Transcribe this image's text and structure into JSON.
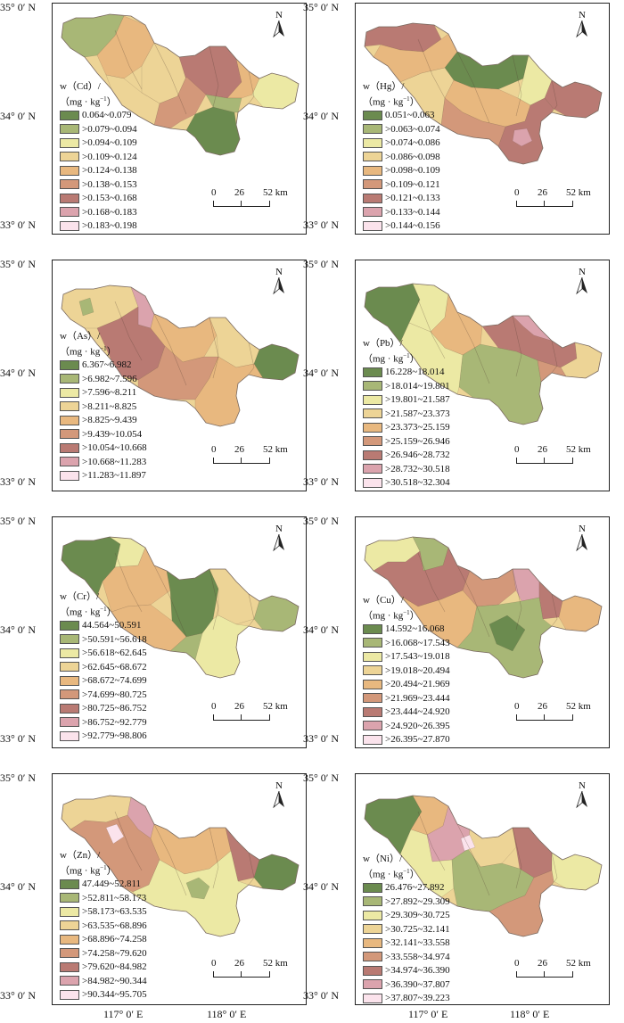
{
  "lat_labels": {
    "n35": "35° 0′ N",
    "n34": "34° 0′ N",
    "n33": "33° 0′ N"
  },
  "lon_labels": {
    "e117": "117° 0′ E",
    "e118": "118° 0′ E"
  },
  "north_label": "N",
  "scale_bar": {
    "t0": "0",
    "t26": "26",
    "t52": "52 km"
  },
  "legend_unit": "（mg · kg",
  "panels": [
    {
      "element": "Cd",
      "title": "w（Cd）/",
      "classes": [
        "0.064~0.079",
        ">0.079~0.094",
        ">0.094~0.109",
        ">0.109~0.124",
        ">0.124~0.138",
        ">0.138~0.153",
        ">0.153~0.168",
        ">0.168~0.183",
        ">0.183~0.198"
      ]
    },
    {
      "element": "Hg",
      "title": "w（Hg）/",
      "classes": [
        "0.051~0.063",
        ">0.063~0.074",
        ">0.074~0.086",
        ">0.086~0.098",
        ">0.098~0.109",
        ">0.109~0.121",
        ">0.121~0.133",
        ">0.133~0.144",
        ">0.144~0.156"
      ]
    },
    {
      "element": "As",
      "title": "w（As）/",
      "classes": [
        "6.367~6.982",
        ">6.982~7.596",
        ">7.596~8.211",
        ">8.211~8.825",
        ">8.825~9.439",
        ">9.439~10.054",
        ">10.054~10.668",
        ">10.668~11.283",
        ">11.283~11.897"
      ]
    },
    {
      "element": "Pb",
      "title": "w（Pb）/",
      "classes": [
        "16.228~18.014",
        ">18.014~19.801",
        ">19.801~21.587",
        ">21.587~23.373",
        ">23.373~25.159",
        ">25.159~26.946",
        ">26.946~28.732",
        ">28.732~30.518",
        ">30.518~32.304"
      ]
    },
    {
      "element": "Cr",
      "title": "w（Cr）/",
      "classes": [
        "44.564~50.591",
        ">50.591~56.618",
        ">56.618~62.645",
        ">62.645~68.672",
        ">68.672~74.699",
        ">74.699~80.725",
        ">80.725~86.752",
        ">86.752~92.779",
        ">92.779~98.806"
      ]
    },
    {
      "element": "Cu",
      "title": "w（Cu）/",
      "classes": [
        "14.592~16.068",
        ">16.068~17.543",
        ">17.543~19.018",
        ">19.018~20.494",
        ">20.494~21.969",
        ">21.969~23.444",
        ">23.444~24.920",
        ">24.920~26.395",
        ">26.395~27.870"
      ]
    },
    {
      "element": "Zn",
      "title": "w（Zn）/",
      "classes": [
        "47.449~52.811",
        ">52.811~58.173",
        ">58.173~63.535",
        ">63.535~68.896",
        ">68.896~74.258",
        ">74.258~79.620",
        ">79.620~84.982",
        ">84.982~90.344",
        ">90.344~95.705"
      ]
    },
    {
      "element": "Ni",
      "title": "w（Ni）/",
      "classes": [
        "26.476~27.892",
        ">27.892~29.309",
        ">29.309~30.725",
        ">30.725~32.141",
        ">32.141~33.558",
        ">33.558~34.974",
        ">34.974~36.390",
        ">36.390~37.807",
        ">37.807~39.223"
      ]
    }
  ],
  "class_colors": [
    "#6b8b4f",
    "#a8b776",
    "#ece9a4",
    "#edd496",
    "#e8b87f",
    "#d3987a",
    "#b97a73",
    "#dba3ad",
    "#fbe3ec"
  ]
}
